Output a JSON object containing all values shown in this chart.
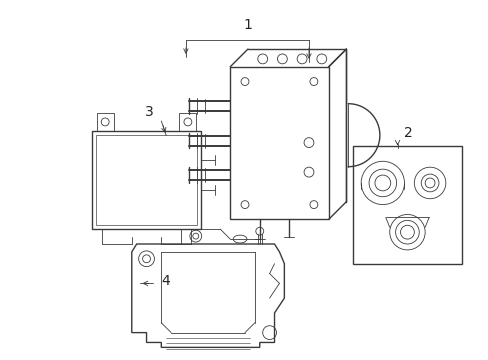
{
  "bg_color": "#ffffff",
  "line_color": "#3a3a3a",
  "lw_main": 1.0,
  "lw_thin": 0.6,
  "fig_width": 4.89,
  "fig_height": 3.6,
  "dpi": 100,
  "label_fontsize": 10,
  "label_color": "#222222"
}
